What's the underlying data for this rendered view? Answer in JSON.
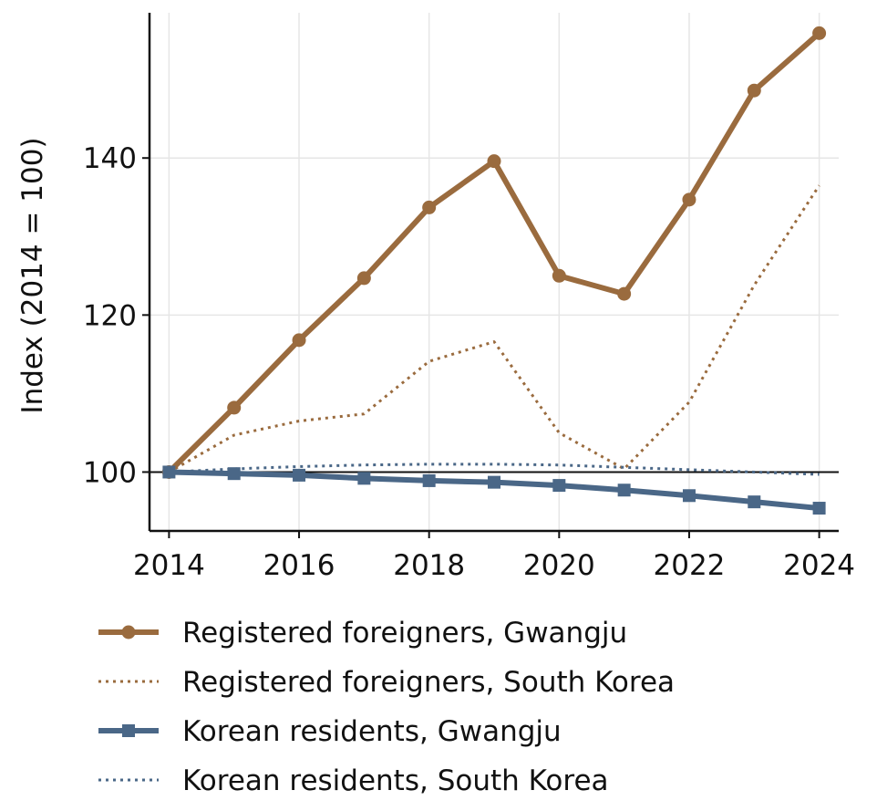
{
  "chart_data": {
    "type": "line",
    "title": "",
    "xlabel": "",
    "ylabel": "Index (2014 = 100)",
    "x": [
      2014,
      2015,
      2016,
      2017,
      2018,
      2019,
      2020,
      2021,
      2022,
      2023,
      2024
    ],
    "xticks": [
      2014,
      2016,
      2018,
      2020,
      2022,
      2024
    ],
    "yticks": [
      100,
      120,
      140
    ],
    "xlim": [
      2013.7,
      2024.3
    ],
    "ylim": [
      92.5,
      158.5
    ],
    "grid": true,
    "reference_line": 100,
    "legend_position": "bottom",
    "series": [
      {
        "name": "Registered foreigners, Gwangju",
        "values": [
          100,
          108.2,
          116.8,
          124.7,
          133.7,
          139.6,
          125.0,
          122.7,
          134.7,
          148.6,
          155.9
        ],
        "color": "#9a6b3e",
        "style": "solid",
        "marker": "circle"
      },
      {
        "name": "Registered foreigners, South Korea",
        "values": [
          100,
          104.7,
          106.5,
          107.4,
          114.1,
          116.6,
          105.0,
          100.4,
          108.9,
          123.8,
          136.5
        ],
        "color": "#9a6b3e",
        "style": "dotted",
        "marker": "none"
      },
      {
        "name": "Korean residents, Gwangju",
        "values": [
          100,
          99.8,
          99.6,
          99.2,
          98.9,
          98.7,
          98.3,
          97.7,
          97.0,
          96.2,
          95.4
        ],
        "color": "#4a6787",
        "style": "solid",
        "marker": "square"
      },
      {
        "name": "Korean residents, South Korea",
        "values": [
          100,
          100.4,
          100.7,
          100.9,
          101.0,
          101.0,
          100.9,
          100.6,
          100.3,
          100.0,
          99.7
        ],
        "color": "#4a6787",
        "style": "dotted",
        "marker": "none"
      }
    ]
  }
}
